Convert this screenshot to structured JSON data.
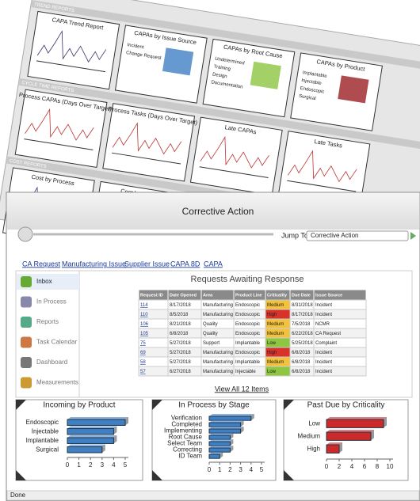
{
  "background": {
    "sections": [
      {
        "label": "TREND REPORTS",
        "panels": [
          {
            "title": "CAPA Trend Report",
            "labels": []
          },
          {
            "title": "CAPAs by Issue Source",
            "labels": [
              "Incident",
              "Change Request"
            ]
          },
          {
            "title": "CAPAs by Root Cause",
            "labels": [
              "Undetermined",
              "Training",
              "Design",
              "Documentation"
            ]
          },
          {
            "title": "CAPAs by Product",
            "labels": [
              "Implantable",
              "Injectable",
              "Endoscopic",
              "Surgical"
            ]
          }
        ]
      },
      {
        "label": "CYCLE TIME REPORTS",
        "panels": [
          {
            "title": "Process CAPAs (Days Over Target)",
            "labels": []
          },
          {
            "title": "Process Tasks (Days Over Target)",
            "labels": []
          },
          {
            "title": "Late CAPAs",
            "labels": []
          },
          {
            "title": "Late Tasks",
            "labels": []
          }
        ]
      },
      {
        "label": "COST REPORTS",
        "panels": [
          {
            "title": "Cost by Process",
            "labels": []
          },
          {
            "title": "Cost by Activity",
            "labels": []
          }
        ]
      }
    ]
  },
  "window": {
    "title": "Corrective Action",
    "jump_label": "Jump To",
    "jump_value": "Corrective Action",
    "status": "Done"
  },
  "tabs": [
    "CA Request",
    "Manufacturing Issue",
    "Supplier Issue",
    "CAPA 8D",
    "CAPA"
  ],
  "sidebar": [
    "Inbox",
    "In Process",
    "Reports",
    "Task Calendar",
    "Dashboard",
    "Measurements"
  ],
  "table": {
    "title": "Requests Awaiting Response",
    "columns": [
      "Request ID",
      "Date Opened",
      "Area",
      "Product Line",
      "Criticality",
      "Due Date",
      "Issue Source"
    ],
    "rows": [
      [
        "114",
        "8/17/2018",
        "Manufacturing",
        "Endoscopic",
        "Medium",
        "8/31/2018",
        "Incident"
      ],
      [
        "110",
        "8/5/2018",
        "Manufacturing",
        "Endoscopic",
        "High",
        "8/17/2018",
        "Incident"
      ],
      [
        "106",
        "8/21/2018",
        "Quality",
        "Endoscopic",
        "Medium",
        "7/5/2018",
        "NCMR"
      ],
      [
        "105",
        "6/8/2018",
        "Quality",
        "Endoscopic",
        "Medium",
        "6/22/2018",
        "CA Request"
      ],
      [
        "75",
        "5/27/2018",
        "Support",
        "Implantable",
        "Low",
        "5/25/2018",
        "Complaint"
      ],
      [
        "69",
        "5/27/2018",
        "Manufacturing",
        "Endoscopic",
        "High",
        "6/8/2018",
        "Incident"
      ],
      [
        "58",
        "5/27/2018",
        "Manufacturing",
        "Implantable",
        "Medium",
        "6/8/2018",
        "Incident"
      ],
      [
        "57",
        "6/27/2018",
        "Manufacturing",
        "Injectable",
        "Low",
        "6/8/2018",
        "Incident"
      ]
    ],
    "criticality_colors": {
      "Medium": "#f2c23c",
      "High": "#d8322b",
      "Low": "#8dc641"
    },
    "footer": "View All 12 Items"
  },
  "chart_data": [
    {
      "type": "bar",
      "title": "Incoming by Product",
      "categories": [
        "Endoscopic",
        "Injectable",
        "Implantable",
        "Surgical"
      ],
      "values": [
        5,
        4,
        4,
        3
      ],
      "color": "#3f7fc4",
      "xlim": [
        0,
        5
      ],
      "xticks": [
        0,
        1,
        2,
        3,
        4,
        5
      ]
    },
    {
      "type": "bar",
      "title": "In Process by Stage",
      "categories": [
        "Verification",
        "Completed",
        "Implementing",
        "Root Cause",
        "Select Team",
        "Correcting",
        "ID Team"
      ],
      "values": [
        4,
        3,
        3,
        2,
        2,
        2,
        1
      ],
      "color": "#3f7fc4",
      "xlim": [
        0,
        5
      ],
      "xticks": [
        0,
        1,
        2,
        3,
        4,
        5
      ]
    },
    {
      "type": "bar",
      "title": "Past Due by Criticality",
      "categories": [
        "Low",
        "Medium",
        "High"
      ],
      "values": [
        9,
        7,
        2
      ],
      "color": "#cc2a2a",
      "xlim": [
        0,
        10
      ],
      "xticks": [
        0,
        2,
        4,
        6,
        8,
        10
      ]
    }
  ]
}
